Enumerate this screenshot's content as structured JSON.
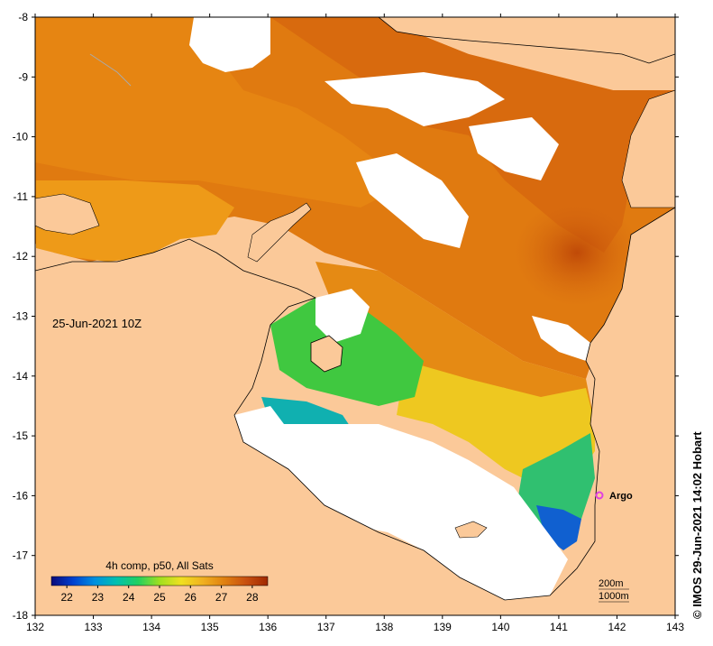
{
  "map": {
    "title_date": "25-Jun-2021 10Z",
    "credit": "© IMOS 29-Jun-2021 14:02 Hobart",
    "land_color": "#FBC999",
    "nodata_color": "#FFFFFF",
    "lon_range": [
      132,
      143
    ],
    "lat_range": [
      -18,
      -8
    ],
    "lon_ticks": [
      "132",
      "133",
      "134",
      "135",
      "136",
      "137",
      "138",
      "139",
      "140",
      "141",
      "142",
      "143"
    ],
    "lat_ticks": [
      "-8",
      "-9",
      "-10",
      "-11",
      "-12",
      "-13",
      "-14",
      "-15",
      "-16",
      "-17",
      "-18"
    ],
    "argo": {
      "label": "Argo",
      "lon": 141.7,
      "lat": -16.0,
      "color": "#E040E0"
    },
    "isobaths": {
      "line1": "200m",
      "line2": "1000m"
    }
  },
  "legend": {
    "title": "4h comp, p50, All Sats",
    "ticks": [
      "22",
      "23",
      "24",
      "25",
      "26",
      "27",
      "28"
    ],
    "range": [
      21.5,
      28.5
    ],
    "colors": [
      "#0a0a7a",
      "#0040d0",
      "#0090e0",
      "#00c0b0",
      "#20d060",
      "#a0e020",
      "#f0e020",
      "#f0b020",
      "#e08010",
      "#c85010",
      "#a02800"
    ]
  }
}
